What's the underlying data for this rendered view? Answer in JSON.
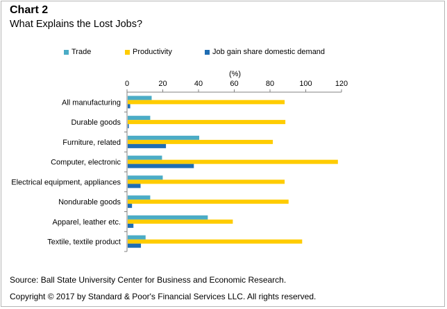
{
  "title": "Chart 2",
  "subtitle": "What Explains the Lost Jobs?",
  "source": "Source: Ball State University Center for Business and Economic Research.",
  "copyright": "Copyright © 2017 by Standard & Poor's Financial Services LLC. All rights reserved.",
  "colors": {
    "trade": "#4bacc6",
    "productivity": "#ffcc00",
    "job_gain": "#1f6db3"
  },
  "chart_data": {
    "type": "bar",
    "orientation": "horizontal",
    "unit_label": "(%)",
    "xlim": [
      0,
      120
    ],
    "xticks": [
      0,
      20,
      40,
      60,
      80,
      100,
      120
    ],
    "legend_position": "top",
    "categories": [
      "All manufacturing",
      "Durable goods",
      "Furniture, related",
      "Computer, electronic",
      "Electrical equipment, appliances",
      "Nondurable goods",
      "Apparel, leather etc.",
      "Textile, textile product"
    ],
    "series": [
      {
        "name": "Trade",
        "values": [
          13.4,
          12.6,
          40.0,
          19.2,
          19.6,
          12.6,
          44.8,
          10.0
        ]
      },
      {
        "name": "Productivity",
        "values": [
          87.8,
          88.2,
          81.2,
          117.6,
          87.8,
          90.0,
          58.8,
          97.6
        ]
      },
      {
        "name": "Job gain share domestic demand",
        "values": [
          1.4,
          0.6,
          21.4,
          37.0,
          7.2,
          2.4,
          3.2,
          7.4
        ]
      }
    ]
  }
}
